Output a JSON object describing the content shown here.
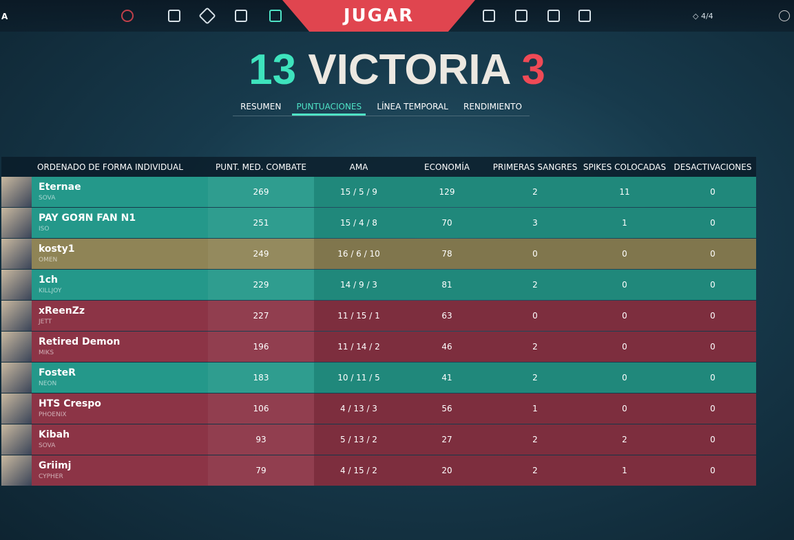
{
  "nav": {
    "left_label": "A",
    "play": "JUGAR",
    "counter": "4/4"
  },
  "score": {
    "team": "13",
    "result": "VICTORIA",
    "enemy": "3"
  },
  "tabs": [
    "RESUMEN",
    "PUNTUACIONES",
    "LÍNEA TEMPORAL",
    "RENDIMIENTO"
  ],
  "active_tab": 1,
  "table": {
    "headers": [
      "ORDENADO DE FORMA INDIVIDUAL",
      "PUNT. MED. COMBATE",
      "AMA",
      "ECONOMÍA",
      "PRIMERAS SANGRES",
      "SPIKES COLOCADAS",
      "DESACTIVACIONES"
    ],
    "rows": [
      {
        "name": "Eternae",
        "agent": "SOVA",
        "color": "#24988a",
        "cells": [
          269,
          "15 / 5 / 9",
          129,
          2,
          11,
          0
        ]
      },
      {
        "name": "PAY GOЯN FAN N1",
        "agent": "ISO",
        "color": "#24988a",
        "cells": [
          251,
          "15 / 4 / 8",
          70,
          3,
          1,
          0
        ]
      },
      {
        "name": "kosty1",
        "agent": "OMEN",
        "color": "#8f8456",
        "cells": [
          249,
          "16 / 6 / 10",
          78,
          0,
          0,
          0
        ]
      },
      {
        "name": "1ch",
        "agent": "KILLJOY",
        "color": "#24988a",
        "cells": [
          229,
          "14 / 9 / 3",
          81,
          2,
          0,
          0
        ]
      },
      {
        "name": "xReenZz",
        "agent": "JETT",
        "color": "#8c3446",
        "cells": [
          227,
          "11 / 15 / 1",
          63,
          0,
          0,
          0
        ]
      },
      {
        "name": "Retired Demon",
        "agent": "MIKS",
        "color": "#8c3446",
        "cells": [
          196,
          "11 / 14 / 2",
          46,
          2,
          0,
          0
        ]
      },
      {
        "name": "FosteR",
        "agent": "NEON",
        "color": "#24988a",
        "cells": [
          183,
          "10 / 11 / 5",
          41,
          2,
          0,
          0
        ]
      },
      {
        "name": "HTS Crespo",
        "agent": "PHOENIX",
        "color": "#8c3446",
        "cells": [
          106,
          "4 / 13 / 3",
          56,
          1,
          0,
          0
        ]
      },
      {
        "name": "Kibah",
        "agent": "SOVA",
        "color": "#8c3446",
        "cells": [
          93,
          "5 / 13 / 2",
          27,
          2,
          2,
          0
        ]
      },
      {
        "name": "Griimj",
        "agent": "CYPHER",
        "color": "#8c3446",
        "cells": [
          79,
          "4 / 15 / 2",
          20,
          2,
          1,
          0
        ]
      }
    ]
  }
}
